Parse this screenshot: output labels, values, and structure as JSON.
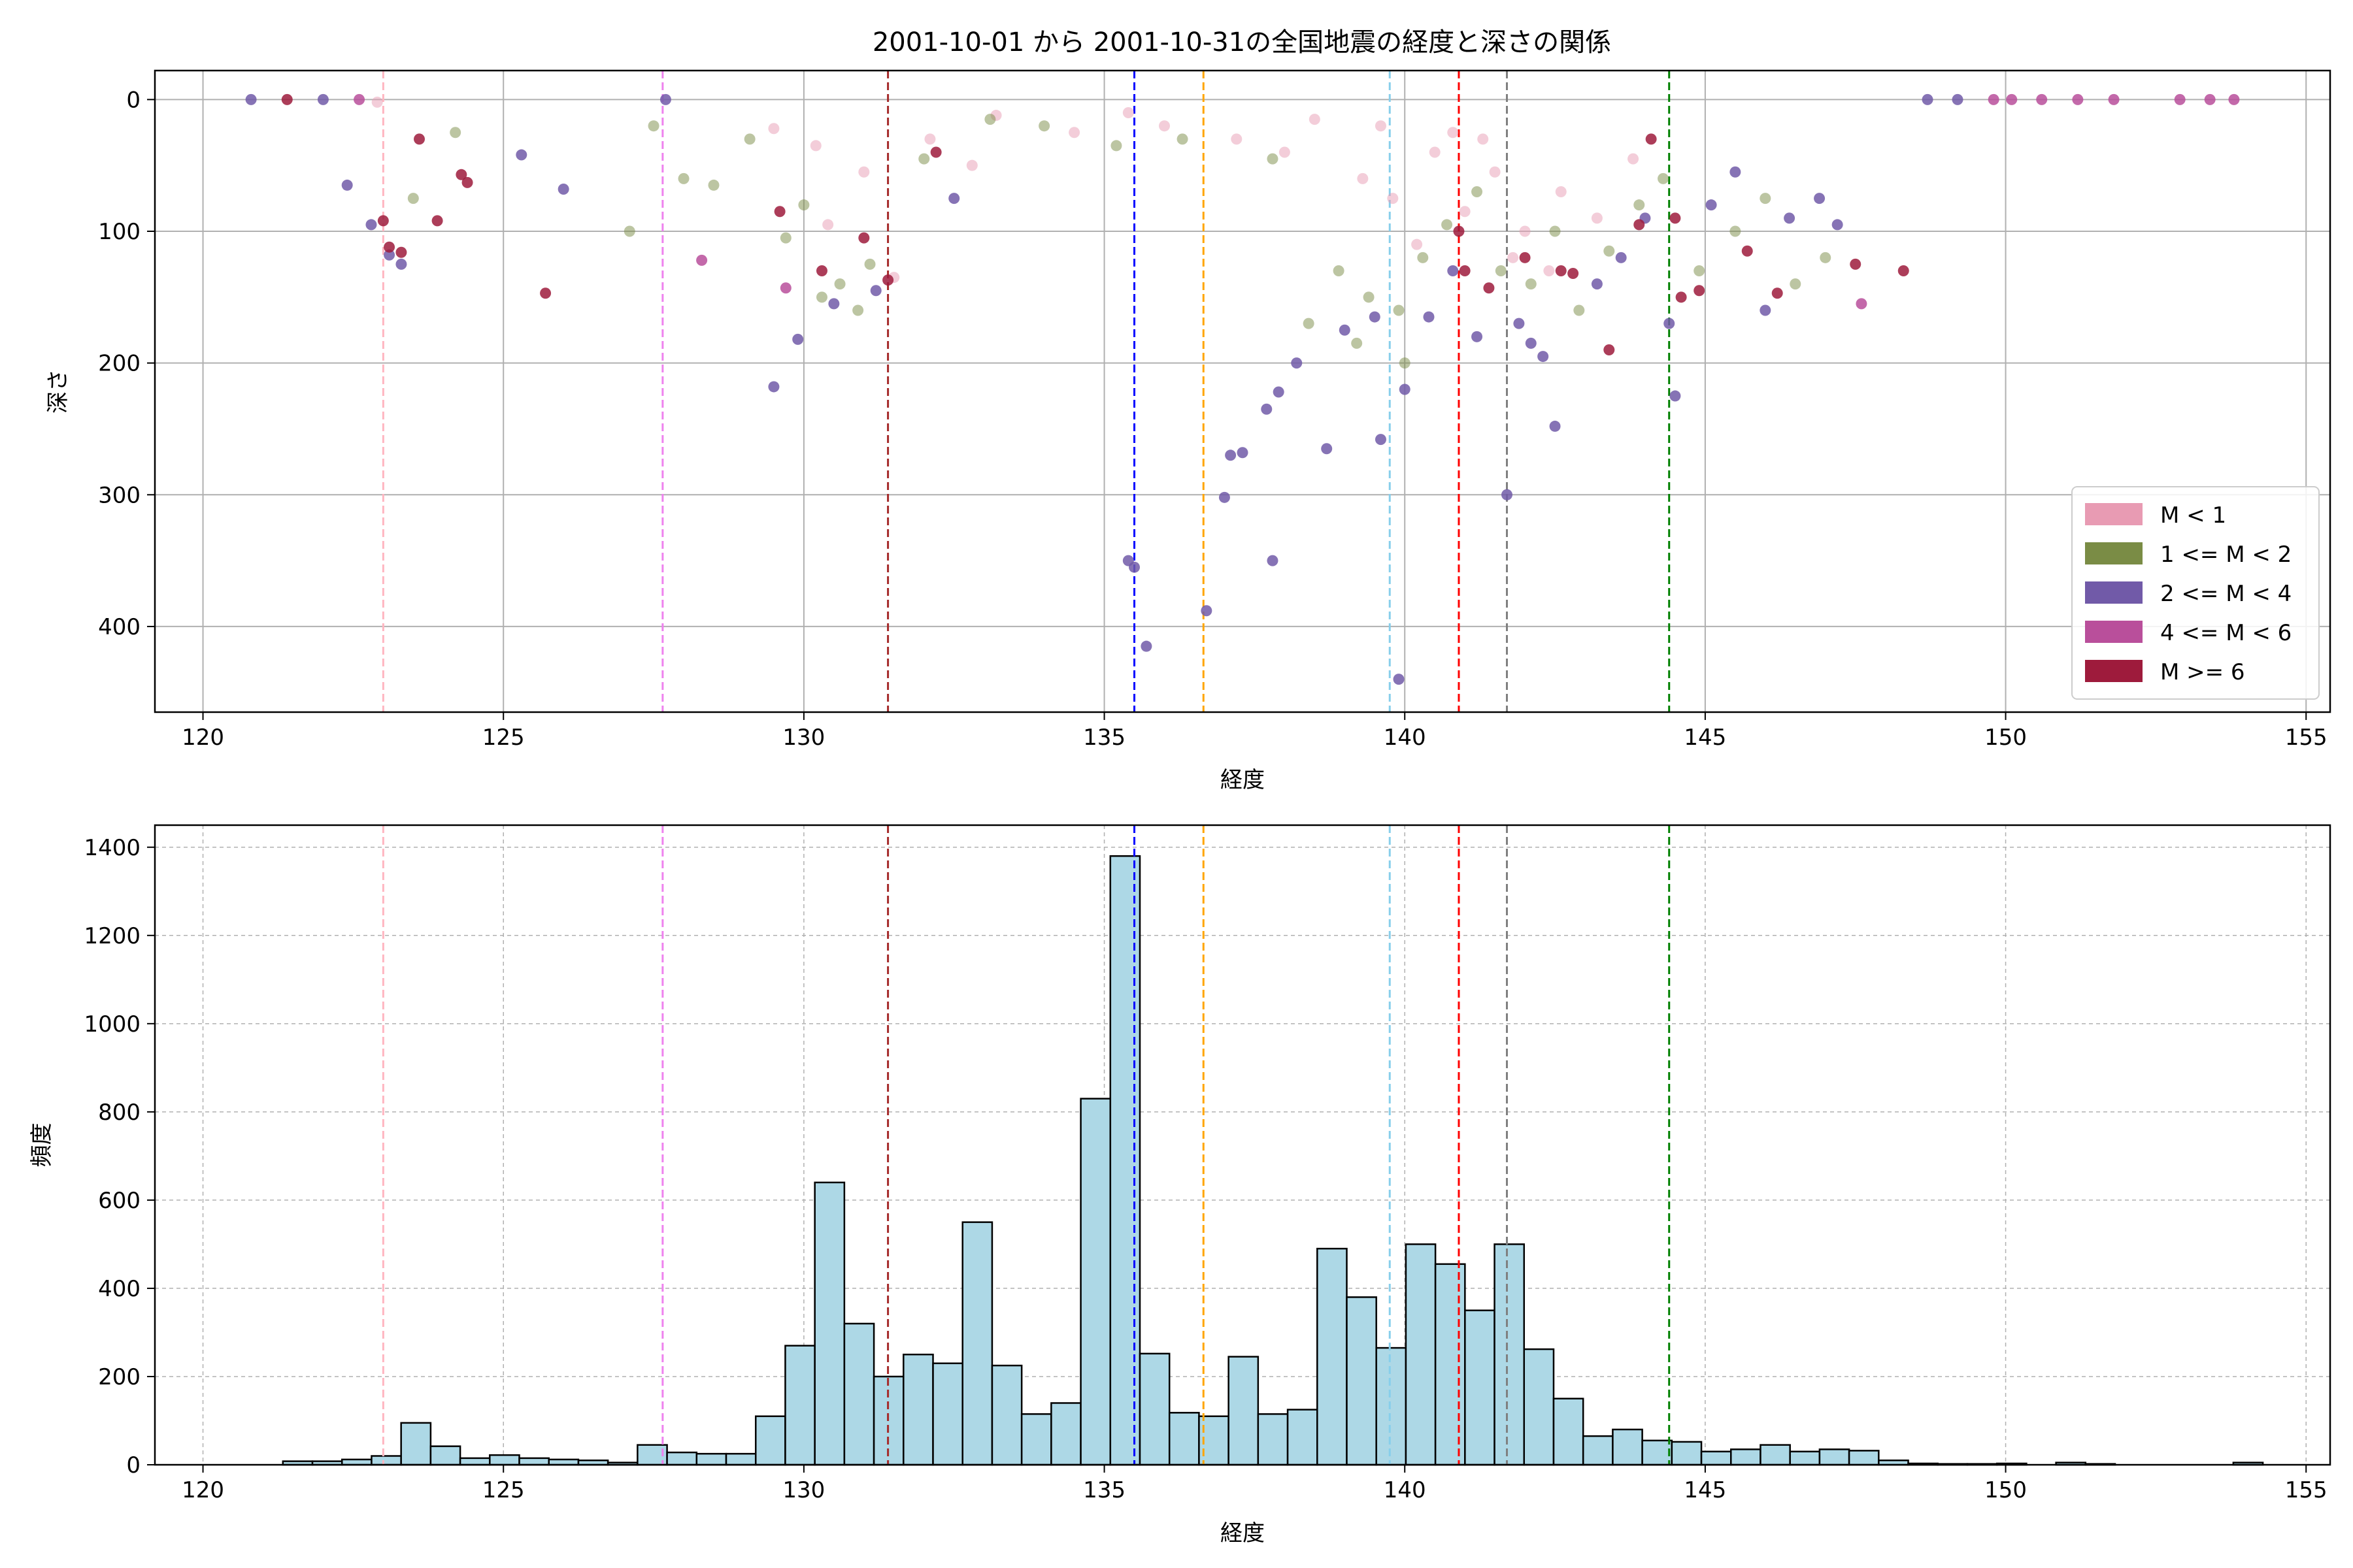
{
  "figure": {
    "title": "2001-10-01 から 2001-10-31の全国地震の経度と深さの関係"
  },
  "colors": {
    "m_lt1": "#e89bb3",
    "m_1_2": "#7a8c45",
    "m_2_4": "#715aa8",
    "m_4_6": "#b94f9b",
    "m_ge6": "#9e1b3c",
    "hist_fill": "#add8e6",
    "hist_edge": "#000000",
    "grid": "#b0b0b0"
  },
  "reference_lines": [
    {
      "x": 123.0,
      "color": "#ffb6c1"
    },
    {
      "x": 127.65,
      "color": "#ee82ee"
    },
    {
      "x": 131.4,
      "color": "#a52a2a"
    },
    {
      "x": 135.5,
      "color": "#0000ff"
    },
    {
      "x": 136.65,
      "color": "#ffa500"
    },
    {
      "x": 139.75,
      "color": "#87ceeb"
    },
    {
      "x": 140.9,
      "color": "#ff0000"
    },
    {
      "x": 141.7,
      "color": "#808080"
    },
    {
      "x": 144.4,
      "color": "#008000"
    }
  ],
  "chart_data": [
    {
      "type": "scatter",
      "title": "2001-10-01 から 2001-10-31の全国地震の経度と深さの関係",
      "xlabel": "経度",
      "ylabel": "深さ",
      "xlim": [
        119.2,
        155.4
      ],
      "ylim": [
        465,
        -22
      ],
      "y_inverted": true,
      "xticks": [
        120,
        125,
        130,
        135,
        140,
        145,
        150,
        155
      ],
      "yticks": [
        0,
        100,
        200,
        300,
        400
      ],
      "grid": true,
      "legend_position": "lower-right",
      "legend": [
        "M < 1",
        "1 <= M < 2",
        "2 <= M < 4",
        "4 <= M < 6",
        "M >= 6"
      ],
      "series": [
        {
          "name": "M < 1",
          "color_key": "m_lt1",
          "points": [
            [
              122.9,
              2
            ],
            [
              129.5,
              22
            ],
            [
              130.2,
              35
            ],
            [
              131.0,
              55
            ],
            [
              132.1,
              30
            ],
            [
              133.2,
              12
            ],
            [
              134.5,
              25
            ],
            [
              135.4,
              10
            ],
            [
              136.0,
              20
            ],
            [
              137.2,
              30
            ],
            [
              138.0,
              40
            ],
            [
              139.3,
              60
            ],
            [
              139.8,
              75
            ],
            [
              140.5,
              40
            ],
            [
              141.0,
              85
            ],
            [
              141.5,
              55
            ],
            [
              142.0,
              100
            ],
            [
              142.6,
              70
            ],
            [
              143.2,
              90
            ],
            [
              143.8,
              45
            ],
            [
              140.2,
              110
            ],
            [
              141.8,
              120
            ],
            [
              142.4,
              130
            ],
            [
              139.6,
              20
            ],
            [
              138.5,
              15
            ],
            [
              140.8,
              25
            ],
            [
              141.3,
              30
            ],
            [
              131.5,
              135
            ],
            [
              130.4,
              95
            ],
            [
              132.8,
              50
            ]
          ]
        },
        {
          "name": "1 <= M < 2",
          "color_key": "m_1_2",
          "points": [
            [
              123.5,
              75
            ],
            [
              124.2,
              25
            ],
            [
              127.5,
              20
            ],
            [
              127.1,
              100
            ],
            [
              128.0,
              60
            ],
            [
              128.5,
              65
            ],
            [
              129.1,
              30
            ],
            [
              130.0,
              80
            ],
            [
              130.3,
              150
            ],
            [
              130.6,
              140
            ],
            [
              131.1,
              125
            ],
            [
              132.0,
              45
            ],
            [
              133.1,
              15
            ],
            [
              134.0,
              20
            ],
            [
              135.2,
              35
            ],
            [
              136.3,
              30
            ],
            [
              137.8,
              45
            ],
            [
              138.4,
              170
            ],
            [
              138.9,
              130
            ],
            [
              139.4,
              150
            ],
            [
              139.9,
              160
            ],
            [
              140.3,
              120
            ],
            [
              140.7,
              95
            ],
            [
              141.2,
              70
            ],
            [
              141.6,
              130
            ],
            [
              142.1,
              140
            ],
            [
              142.5,
              100
            ],
            [
              142.9,
              160
            ],
            [
              143.4,
              115
            ],
            [
              143.9,
              80
            ],
            [
              144.3,
              60
            ],
            [
              144.9,
              130
            ],
            [
              145.5,
              100
            ],
            [
              146.0,
              75
            ],
            [
              146.5,
              140
            ],
            [
              147.0,
              120
            ],
            [
              140.0,
              200
            ],
            [
              139.2,
              185
            ],
            [
              130.9,
              160
            ],
            [
              129.7,
              105
            ]
          ]
        },
        {
          "name": "2 <= M < 4",
          "color_key": "m_2_4",
          "points": [
            [
              120.8,
              0
            ],
            [
              122.4,
              65
            ],
            [
              122.8,
              95
            ],
            [
              123.1,
              118
            ],
            [
              123.3,
              125
            ],
            [
              125.3,
              42
            ],
            [
              126.0,
              68
            ],
            [
              129.5,
              218
            ],
            [
              129.9,
              182
            ],
            [
              130.5,
              155
            ],
            [
              131.2,
              145
            ],
            [
              132.5,
              75
            ],
            [
              135.4,
              350
            ],
            [
              135.5,
              355
            ],
            [
              135.7,
              415
            ],
            [
              136.7,
              388
            ],
            [
              137.0,
              302
            ],
            [
              137.1,
              270
            ],
            [
              137.3,
              268
            ],
            [
              137.7,
              235
            ],
            [
              137.9,
              222
            ],
            [
              137.8,
              350
            ],
            [
              138.2,
              200
            ],
            [
              138.7,
              265
            ],
            [
              139.0,
              175
            ],
            [
              139.5,
              165
            ],
            [
              139.6,
              258
            ],
            [
              139.9,
              440
            ],
            [
              140.0,
              220
            ],
            [
              140.4,
              165
            ],
            [
              140.8,
              130
            ],
            [
              141.2,
              180
            ],
            [
              141.7,
              300
            ],
            [
              141.9,
              170
            ],
            [
              142.1,
              185
            ],
            [
              142.3,
              195
            ],
            [
              142.5,
              248
            ],
            [
              143.2,
              140
            ],
            [
              143.6,
              120
            ],
            [
              144.0,
              90
            ],
            [
              144.5,
              225
            ],
            [
              144.4,
              170
            ],
            [
              145.1,
              80
            ],
            [
              145.5,
              55
            ],
            [
              146.0,
              160
            ],
            [
              146.4,
              90
            ],
            [
              146.9,
              75
            ],
            [
              147.2,
              95
            ],
            [
              148.7,
              0
            ],
            [
              149.2,
              0
            ],
            [
              122.0,
              0
            ],
            [
              127.7,
              0
            ]
          ]
        },
        {
          "name": "4 <= M < 6",
          "color_key": "m_4_6",
          "points": [
            [
              128.3,
              122
            ],
            [
              129.7,
              143
            ],
            [
              147.6,
              155
            ],
            [
              150.1,
              0
            ],
            [
              151.2,
              0
            ],
            [
              151.8,
              0
            ],
            [
              152.9,
              0
            ],
            [
              153.4,
              0
            ],
            [
              153.8,
              0
            ],
            [
              150.6,
              0
            ],
            [
              149.8,
              0
            ],
            [
              122.6,
              0
            ]
          ]
        },
        {
          "name": "M >= 6",
          "color_key": "m_ge6",
          "points": [
            [
              121.4,
              0
            ],
            [
              123.0,
              92
            ],
            [
              123.1,
              112
            ],
            [
              123.3,
              116
            ],
            [
              123.6,
              30
            ],
            [
              124.3,
              57
            ],
            [
              124.4,
              63
            ],
            [
              123.9,
              92
            ],
            [
              125.7,
              147
            ],
            [
              129.6,
              85
            ],
            [
              130.3,
              130
            ],
            [
              131.0,
              105
            ],
            [
              131.4,
              137
            ],
            [
              132.2,
              40
            ],
            [
              140.9,
              100
            ],
            [
              141.0,
              130
            ],
            [
              141.4,
              143
            ],
            [
              142.0,
              120
            ],
            [
              142.6,
              130
            ],
            [
              142.8,
              132
            ],
            [
              143.4,
              190
            ],
            [
              144.6,
              150
            ],
            [
              144.9,
              145
            ],
            [
              144.5,
              90
            ],
            [
              145.7,
              115
            ],
            [
              146.2,
              147
            ],
            [
              147.5,
              125
            ],
            [
              148.3,
              130
            ],
            [
              143.9,
              95
            ],
            [
              144.1,
              30
            ]
          ]
        }
      ]
    },
    {
      "type": "bar",
      "subtype": "histogram",
      "xlabel": "経度",
      "ylabel": "頻度",
      "xlim": [
        119.2,
        155.4
      ],
      "ylim": [
        0,
        1450
      ],
      "xticks": [
        120,
        125,
        130,
        135,
        140,
        145,
        150,
        155
      ],
      "yticks": [
        0,
        200,
        400,
        600,
        800,
        1000,
        1200,
        1400
      ],
      "grid": true,
      "bin_start": 121.33,
      "bin_width": 0.4918,
      "values": [
        8,
        8,
        12,
        20,
        95,
        42,
        15,
        22,
        15,
        12,
        10,
        5,
        45,
        28,
        25,
        25,
        110,
        270,
        640,
        320,
        200,
        250,
        230,
        550,
        225,
        115,
        140,
        830,
        1380,
        252,
        118,
        110,
        245,
        115,
        125,
        490,
        380,
        265,
        500,
        455,
        350,
        500,
        262,
        150,
        65,
        80,
        55,
        52,
        30,
        35,
        45,
        30,
        35,
        32,
        10,
        3,
        2,
        2,
        3,
        0,
        5,
        2,
        0,
        0,
        0,
        0,
        5,
        0
      ]
    }
  ]
}
